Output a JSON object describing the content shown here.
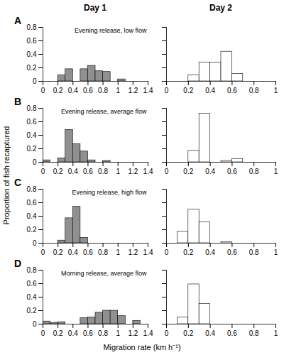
{
  "chart_data": [
    {
      "type": "histogram",
      "title": "Day 1",
      "subtitle": "Evening release, low flow",
      "annotations": [
        "A"
      ],
      "ylabel": "Proportion of fish recaptured",
      "bins": [
        0.0,
        0.1,
        0.2,
        0.3,
        0.4,
        0.5,
        0.6,
        0.7,
        0.8,
        0.9,
        1.0,
        1.1,
        1.2,
        1.3,
        1.4
      ],
      "values": [
        0.0,
        0.0,
        0.09,
        0.18,
        0.0,
        0.18,
        0.23,
        0.15,
        0.14,
        0.0,
        0.03,
        0.0,
        0.0,
        0.0
      ],
      "color": "#909090",
      "xlim": [
        0,
        1.4
      ],
      "xticks": [
        0,
        0.2,
        0.4,
        0.6,
        0.8,
        1,
        1.2,
        1.4
      ],
      "ylim": [
        0,
        0.8
      ],
      "yticks": [
        0,
        0.2,
        0.4,
        0.6,
        0.8
      ]
    },
    {
      "type": "histogram",
      "title": "Day 2",
      "tick_labels": "x",
      "bins": [
        0.0,
        0.1,
        0.2,
        0.3,
        0.4,
        0.5,
        0.6,
        0.7,
        0.8,
        0.9,
        1.0
      ],
      "values": [
        0.0,
        0.0,
        0.09,
        0.28,
        0.28,
        0.44,
        0.11,
        0.0,
        0.0,
        0.0
      ],
      "color": "#ffffff",
      "xlim": [
        0,
        1
      ],
      "xticks": [
        0,
        0.2,
        0.4,
        0.6,
        0.8,
        1
      ],
      "ylim": [
        0,
        0.8
      ],
      "yticks": [
        0,
        0.2,
        0.4,
        0.6,
        0.8
      ]
    },
    {
      "type": "histogram",
      "subtitle": "Evening release, average flow",
      "annotations": [
        "B"
      ],
      "bins": [
        0.0,
        0.1,
        0.2,
        0.3,
        0.4,
        0.5,
        0.6,
        0.7,
        0.8,
        0.9,
        1.0,
        1.1,
        1.2,
        1.3,
        1.4
      ],
      "values": [
        0.03,
        0.0,
        0.06,
        0.48,
        0.27,
        0.16,
        0.03,
        0.0,
        0.02,
        0.0,
        0.0,
        0.0,
        0.0,
        0.0
      ],
      "color": "#909090",
      "xlim": [
        0,
        1.4
      ],
      "xticks": [
        0,
        0.2,
        0.4,
        0.6,
        0.8,
        1,
        1.2,
        1.4
      ],
      "ylim": [
        0,
        0.8
      ],
      "yticks": [
        0,
        0.2,
        0.4,
        0.6,
        0.8
      ]
    },
    {
      "type": "histogram",
      "tick_labels": "x",
      "bins": [
        0.0,
        0.1,
        0.2,
        0.3,
        0.4,
        0.5,
        0.6,
        0.7,
        0.8,
        0.9,
        1.0
      ],
      "values": [
        0.0,
        0.0,
        0.17,
        0.72,
        0.0,
        0.02,
        0.05,
        0.0,
        0.0,
        0.0
      ],
      "color": "#ffffff",
      "xlim": [
        0,
        1
      ],
      "xticks": [
        0,
        0.2,
        0.4,
        0.6,
        0.8,
        1
      ],
      "ylim": [
        0,
        0.8
      ],
      "yticks": [
        0,
        0.2,
        0.4,
        0.6,
        0.8
      ]
    },
    {
      "type": "histogram",
      "subtitle": "Evening release, high flow",
      "annotations": [
        "C"
      ],
      "bins": [
        0.0,
        0.1,
        0.2,
        0.3,
        0.4,
        0.5,
        0.6,
        0.7,
        0.8,
        0.9,
        1.0,
        1.1,
        1.2,
        1.3,
        1.4
      ],
      "values": [
        0.0,
        0.0,
        0.04,
        0.37,
        0.54,
        0.08,
        0.0,
        0.0,
        0.0,
        0.0,
        0.0,
        0.0,
        0.0,
        0.0
      ],
      "color": "#909090",
      "xlim": [
        0,
        1.4
      ],
      "xticks": [
        0,
        0.2,
        0.4,
        0.6,
        0.8,
        1,
        1.2,
        1.4
      ],
      "ylim": [
        0,
        0.8
      ],
      "yticks": [
        0,
        0.2,
        0.4,
        0.6,
        0.8
      ]
    },
    {
      "type": "histogram",
      "tick_labels": "x",
      "bins": [
        0.0,
        0.1,
        0.2,
        0.3,
        0.4,
        0.5,
        0.6,
        0.7,
        0.8,
        0.9,
        1.0
      ],
      "values": [
        0.0,
        0.17,
        0.5,
        0.31,
        0.0,
        0.015,
        0.0,
        0.0,
        0.0,
        0.0
      ],
      "color": "#ffffff",
      "xlim": [
        0,
        1
      ],
      "xticks": [
        0,
        0.2,
        0.4,
        0.6,
        0.8,
        1
      ],
      "ylim": [
        0,
        0.8
      ],
      "yticks": [
        0,
        0.2,
        0.4,
        0.6,
        0.8
      ]
    },
    {
      "type": "histogram",
      "subtitle": "Morning release, average flow",
      "annotations": [
        "D"
      ],
      "xlabel": "Migration rate (km h⁻¹)",
      "bins": [
        0.0,
        0.1,
        0.2,
        0.3,
        0.4,
        0.5,
        0.6,
        0.7,
        0.8,
        0.9,
        1.0,
        1.1,
        1.2,
        1.3,
        1.4
      ],
      "values": [
        0.04,
        0.02,
        0.03,
        0.0,
        0.0,
        0.09,
        0.1,
        0.17,
        0.2,
        0.2,
        0.12,
        0.0,
        0.05,
        0.0
      ],
      "color": "#909090",
      "xlim": [
        0,
        1.4
      ],
      "xticks": [
        0,
        0.2,
        0.4,
        0.6,
        0.8,
        1,
        1.2,
        1.4
      ],
      "ylim": [
        0,
        0.8
      ],
      "yticks": [
        0,
        0.2,
        0.4,
        0.6,
        0.8
      ]
    },
    {
      "type": "histogram",
      "tick_labels": "x",
      "bins": [
        0.0,
        0.1,
        0.2,
        0.3,
        0.4,
        0.5,
        0.6,
        0.7,
        0.8,
        0.9,
        1.0
      ],
      "values": [
        0.0,
        0.1,
        0.59,
        0.3,
        0.0,
        0.0,
        0.0,
        0.0,
        0.0,
        0.0
      ],
      "color": "#ffffff",
      "xlim": [
        0,
        1
      ],
      "xticks": [
        0,
        0.2,
        0.4,
        0.6,
        0.8,
        1
      ],
      "ylim": [
        0,
        0.8
      ],
      "yticks": [
        0,
        0.2,
        0.4,
        0.6,
        0.8
      ]
    }
  ]
}
